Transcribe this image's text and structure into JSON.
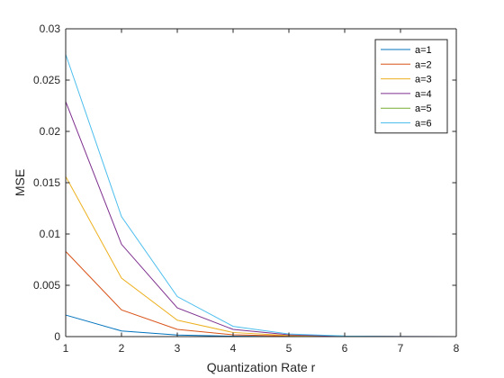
{
  "chart_data": {
    "type": "line",
    "title": "",
    "xlabel": "Quantization Rate r",
    "ylabel": "MSE",
    "xlim": [
      1,
      8
    ],
    "ylim": [
      0,
      0.03
    ],
    "grid": false,
    "legend_position": "top-right",
    "x": [
      1,
      2,
      3,
      4,
      5,
      6,
      7,
      8
    ],
    "xticks": [
      "1",
      "2",
      "3",
      "4",
      "5",
      "6",
      "7",
      "8"
    ],
    "yticks": [
      {
        "value": 0,
        "label": "0"
      },
      {
        "value": 0.005,
        "label": "0.005"
      },
      {
        "value": 0.01,
        "label": "0.01"
      },
      {
        "value": 0.015,
        "label": "0.015"
      },
      {
        "value": 0.02,
        "label": "0.02"
      },
      {
        "value": 0.025,
        "label": "0.025"
      },
      {
        "value": 0.03,
        "label": "0.03"
      }
    ],
    "series": [
      {
        "name": "a=1",
        "color": "#0072BD",
        "values": [
          0.0021,
          0.00055,
          0.00015,
          4e-05,
          1e-05,
          0.0,
          0.0,
          0.0
        ]
      },
      {
        "name": "a=2",
        "color": "#D95319",
        "values": [
          0.0083,
          0.0026,
          0.0007,
          0.00018,
          5e-05,
          1e-05,
          0.0,
          0.0
        ]
      },
      {
        "name": "a=3",
        "color": "#EDB120",
        "values": [
          0.0156,
          0.0057,
          0.0016,
          0.0004,
          0.0001,
          2e-05,
          0.0,
          0.0
        ]
      },
      {
        "name": "a=4",
        "color": "#7E2F8E",
        "values": [
          0.0229,
          0.009,
          0.0028,
          0.0007,
          0.00018,
          4e-05,
          1e-05,
          0.0
        ]
      },
      {
        "name": "a=5",
        "color": "#77AC30",
        "values": [
          0.0,
          0.0,
          0.0,
          0.0,
          0.0,
          0.0,
          0.0,
          0.0
        ]
      },
      {
        "name": "a=6",
        "color": "#4DBEEE",
        "values": [
          0.0275,
          0.0117,
          0.0039,
          0.001,
          0.00025,
          6e-05,
          1e-05,
          0.0
        ]
      }
    ]
  }
}
